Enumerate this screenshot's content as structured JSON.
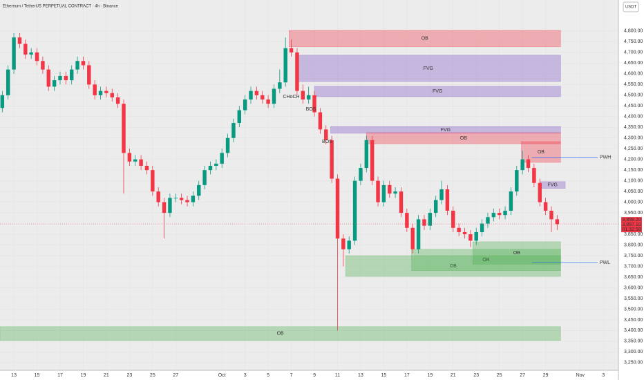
{
  "chart_data": {
    "type": "candlestick",
    "title": "Ethereum / TetherUS PERPETUAL CONTRACT · 4h · Binance",
    "currency": "USDT",
    "up_color": "#089981",
    "down_color": "#f23645",
    "xlim": [
      11.8,
      65.3
    ],
    "ylim": [
      3214,
      4945
    ],
    "x": [
      12,
      12.5,
      13,
      13.5,
      14,
      14.5,
      15,
      15.5,
      16,
      16.5,
      17,
      17.5,
      18,
      18.5,
      19,
      19.5,
      20,
      20.5,
      21,
      21.5,
      22,
      22.5,
      23,
      23.5,
      24,
      24.5,
      25,
      25.5,
      26,
      26.5,
      27,
      27.5,
      28,
      28.5,
      29,
      29.5,
      30,
      30.5,
      31,
      31.5,
      32,
      32.5,
      33,
      33.5,
      34,
      34.5,
      35,
      35.5,
      36,
      36.5,
      37,
      37.5,
      38,
      38.5,
      39,
      39.5,
      40,
      40.5,
      41,
      41.5,
      42,
      42.5,
      43,
      43.5,
      44,
      44.5,
      45,
      45.5,
      46,
      46.5,
      47,
      47.5,
      48,
      48.5,
      49,
      49.5,
      50,
      50.5,
      51,
      51.5,
      52,
      52.5,
      53,
      53.5,
      54,
      54.5,
      55,
      55.5,
      56,
      56.5,
      57,
      57.5,
      58,
      58.5,
      59,
      59.5,
      60
    ],
    "open": [
      4440,
      4500,
      4620,
      4770,
      4740,
      4690,
      4700,
      4660,
      4620,
      4540,
      4570,
      4590,
      4570,
      4620,
      4660,
      4640,
      4550,
      4500,
      4520,
      4510,
      4490,
      4460,
      4230,
      4190,
      4200,
      4170,
      4150,
      4050,
      4000,
      3950,
      4020,
      4020,
      4010,
      4000,
      4030,
      4080,
      4150,
      4170,
      4180,
      4230,
      4300,
      4370,
      4430,
      4480,
      4520,
      4500,
      4480,
      4460,
      4530,
      4560,
      4720,
      4700,
      4520,
      4480,
      4500,
      4420,
      4340,
      4290,
      4110,
      3830,
      3780,
      3820,
      4100,
      4160,
      4290,
      4100,
      4000,
      4080,
      4040,
      4050,
      3950,
      3880,
      3780,
      3920,
      3890,
      3950,
      4010,
      4060,
      3960,
      3880,
      3860,
      3850,
      3820,
      3860,
      3900,
      3930,
      3950,
      3940,
      3960,
      4050,
      4150,
      4200,
      4160,
      4090,
      4000,
      3960,
      3920
    ],
    "high": [
      4520,
      4640,
      4790,
      4790,
      4760,
      4720,
      4720,
      4680,
      4640,
      4590,
      4610,
      4610,
      4640,
      4680,
      4680,
      4660,
      4570,
      4540,
      4540,
      4530,
      4510,
      4480,
      4250,
      4220,
      4220,
      4190,
      4170,
      4070,
      4020,
      4040,
      4040,
      4040,
      4030,
      4050,
      4100,
      4170,
      4190,
      4200,
      4250,
      4320,
      4390,
      4450,
      4500,
      4540,
      4540,
      4520,
      4500,
      4550,
      4620,
      4770,
      4760,
      4720,
      4550,
      4540,
      4520,
      4440,
      4360,
      4310,
      4130,
      3850,
      3840,
      4120,
      4180,
      4310,
      4310,
      4120,
      4100,
      4100,
      4070,
      4070,
      3970,
      3900,
      3940,
      3940,
      3970,
      4030,
      4100,
      4080,
      3980,
      3900,
      3880,
      3870,
      3880,
      3920,
      3950,
      3970,
      3970,
      3980,
      4070,
      4170,
      4240,
      4220,
      4180,
      4110,
      4020,
      3980,
      3940
    ],
    "low": [
      4420,
      4480,
      4600,
      4720,
      4670,
      4670,
      4640,
      4600,
      4520,
      4520,
      4550,
      4550,
      4550,
      4600,
      4620,
      4530,
      4480,
      4480,
      4490,
      4470,
      4440,
      4040,
      4170,
      4170,
      4150,
      4130,
      4030,
      3980,
      3830,
      3930,
      4000,
      3990,
      3980,
      3980,
      4010,
      4060,
      4130,
      4150,
      4160,
      4210,
      4280,
      4350,
      4410,
      4460,
      4480,
      4460,
      4440,
      4440,
      4510,
      4540,
      4680,
      4500,
      4460,
      4460,
      4400,
      4320,
      4270,
      4090,
      3400,
      3700,
      3760,
      3800,
      4080,
      4140,
      4080,
      3980,
      3980,
      4020,
      4020,
      3930,
      3860,
      3760,
      3760,
      3870,
      3870,
      3930,
      3990,
      3940,
      3860,
      3840,
      3830,
      3790,
      3800,
      3840,
      3880,
      3910,
      3920,
      3920,
      3940,
      4030,
      4130,
      4140,
      4070,
      3980,
      3940,
      3860,
      3870
    ],
    "close": [
      4500,
      4620,
      4770,
      4740,
      4690,
      4700,
      4660,
      4620,
      4540,
      4570,
      4590,
      4570,
      4620,
      4660,
      4640,
      4550,
      4500,
      4520,
      4510,
      4490,
      4460,
      4230,
      4190,
      4200,
      4170,
      4150,
      4050,
      4000,
      3950,
      4020,
      4020,
      4010,
      4000,
      4030,
      4080,
      4150,
      4170,
      4180,
      4230,
      4300,
      4370,
      4430,
      4480,
      4520,
      4500,
      4480,
      4460,
      4530,
      4560,
      4720,
      4700,
      4520,
      4480,
      4500,
      4420,
      4340,
      4290,
      4110,
      3830,
      3780,
      3820,
      4100,
      4160,
      4290,
      4100,
      4000,
      4080,
      4040,
      4050,
      3950,
      3880,
      3780,
      3920,
      3890,
      3950,
      4010,
      4060,
      3960,
      3880,
      3860,
      3850,
      3820,
      3860,
      3900,
      3930,
      3950,
      3940,
      3960,
      4050,
      4150,
      4200,
      4160,
      4090,
      4000,
      3960,
      3920,
      3897
    ],
    "yticks": [
      {
        "value": 3250,
        "label": "3,250.00"
      },
      {
        "value": 3300,
        "label": "3,300.00"
      },
      {
        "value": 3350,
        "label": "3,350.00"
      },
      {
        "value": 3400,
        "label": "3,400.00"
      },
      {
        "value": 3450,
        "label": "3,450.00"
      },
      {
        "value": 3500,
        "label": "3,500.00"
      },
      {
        "value": 3550,
        "label": "3,550.00"
      },
      {
        "value": 3600,
        "label": "3,600.00"
      },
      {
        "value": 3650,
        "label": "3,650.00"
      },
      {
        "value": 3700,
        "label": "3,700.00"
      },
      {
        "value": 3750,
        "label": "3,750.00"
      },
      {
        "value": 3800,
        "label": "3,800.00"
      },
      {
        "value": 3850,
        "label": "3,850.00"
      },
      {
        "value": 3950,
        "label": "3,950.00"
      },
      {
        "value": 4000,
        "label": "4,000.00"
      },
      {
        "value": 4050,
        "label": "4,050.00"
      },
      {
        "value": 4100,
        "label": "4,100.00"
      },
      {
        "value": 4150,
        "label": "4,150.00"
      },
      {
        "value": 4200,
        "label": "4,200.00"
      },
      {
        "value": 4250,
        "label": "4,250.00"
      },
      {
        "value": 4300,
        "label": "4,300.00"
      },
      {
        "value": 4350,
        "label": "4,350.00"
      },
      {
        "value": 4400,
        "label": "4,400.00"
      },
      {
        "value": 4450,
        "label": "4,450.00"
      },
      {
        "value": 4500,
        "label": "4,500.00"
      },
      {
        "value": 4550,
        "label": "4,550.00"
      },
      {
        "value": 4600,
        "label": "4,600.00"
      },
      {
        "value": 4650,
        "label": "4,650.00"
      },
      {
        "value": 4700,
        "label": "4,700.00"
      },
      {
        "value": 4750,
        "label": "4,750.00"
      },
      {
        "value": 4800,
        "label": "4,800.00"
      }
    ],
    "xticks": [
      13,
      15,
      17,
      19,
      21,
      23,
      25,
      27,
      {
        "value": 31,
        "label": "Oct"
      },
      {
        "value": 33,
        "label": "3"
      },
      {
        "value": 35,
        "label": "5"
      },
      {
        "value": 37,
        "label": "7"
      },
      {
        "value": 39,
        "label": "9"
      },
      {
        "value": 41,
        "label": "11"
      },
      {
        "value": 43,
        "label": "13"
      },
      {
        "value": 45,
        "label": "15"
      },
      {
        "value": 47,
        "label": "17"
      },
      {
        "value": 49,
        "label": "19"
      },
      {
        "value": 51,
        "label": "21"
      },
      {
        "value": 53,
        "label": "23"
      },
      {
        "value": 55,
        "label": "25"
      },
      {
        "value": 57,
        "label": "27"
      },
      {
        "value": 59,
        "label": "29"
      },
      {
        "value": 62,
        "label": "Nov"
      },
      {
        "value": 64,
        "label": "3"
      }
    ],
    "zones": [
      {
        "label": "OB",
        "x": [
          36.8,
          60.3
        ],
        "y": [
          4726,
          4803
        ],
        "color": "#f23645",
        "label_color": "#f23645"
      },
      {
        "label": "FVG",
        "x": [
          37.4,
          60.3
        ],
        "y": [
          4564,
          4687
        ],
        "color": "#7e57c2",
        "label_color": "#2962ff"
      },
      {
        "label": "FVG",
        "x": [
          39.0,
          60.3
        ],
        "y": [
          4493,
          4542
        ],
        "color": "#7e57c2",
        "label_color": "#2962ff"
      },
      {
        "label": "FVG",
        "x": [
          40.4,
          60.3
        ],
        "y": [
          4322,
          4354
        ],
        "color": "#7e57c2",
        "label_color": "#2962ff"
      },
      {
        "label": "OB",
        "x": [
          43.5,
          60.3
        ],
        "y": [
          4273,
          4325
        ],
        "color": "#f23645",
        "label_color": "#f23645"
      },
      {
        "label": "OB",
        "x": [
          56.9,
          60.3
        ],
        "y": [
          4186,
          4283
        ],
        "color": "#f23645",
        "label_color": "#f23645"
      },
      {
        "label": "FVG",
        "x": [
          58.5,
          60.7
        ],
        "y": [
          4064,
          4096
        ],
        "color": "#7e57c2",
        "label_color": "#2962ff"
      },
      {
        "label": "OB",
        "x": [
          41.7,
          60.3
        ],
        "y": [
          3653,
          3750
        ],
        "color": "#4caf50",
        "label_color": "#2e7d32"
      },
      {
        "label": "OB",
        "x": [
          47.4,
          60.3
        ],
        "y": [
          3680,
          3780
        ],
        "color": "#4caf50",
        "label_color": "#2e7d32"
      },
      {
        "label": "OB",
        "x": [
          52.7,
          60.3
        ],
        "y": [
          3710,
          3815
        ],
        "color": "#4caf50",
        "label_color": "#1b5e20"
      },
      {
        "label": "OB",
        "x": [
          11.8,
          60.3
        ],
        "y": [
          3353,
          3418
        ],
        "color": "#4caf50",
        "label_color": "#2e7d32"
      }
    ],
    "levels": [
      {
        "label": "PWH",
        "value": 4209,
        "x": [
          57.8,
          63.5
        ],
        "color": "#2962ff"
      },
      {
        "label": "PWL",
        "value": 3718,
        "x": [
          57.8,
          63.5
        ],
        "color": "#2962ff"
      }
    ],
    "annotations": [
      {
        "text": "CHoCH",
        "x": 37.0,
        "y": 4493,
        "color": "#f23645"
      },
      {
        "text": "BOS",
        "x": 38.7,
        "y": 4435,
        "color": "#f23645"
      },
      {
        "text": "BOS",
        "x": 40.1,
        "y": 4283,
        "color": "#f23645"
      }
    ],
    "last_price": {
      "value": 3898.2,
      "labels": [
        "3,898.20",
        "3,897.10",
        "01:32:58"
      ]
    }
  }
}
